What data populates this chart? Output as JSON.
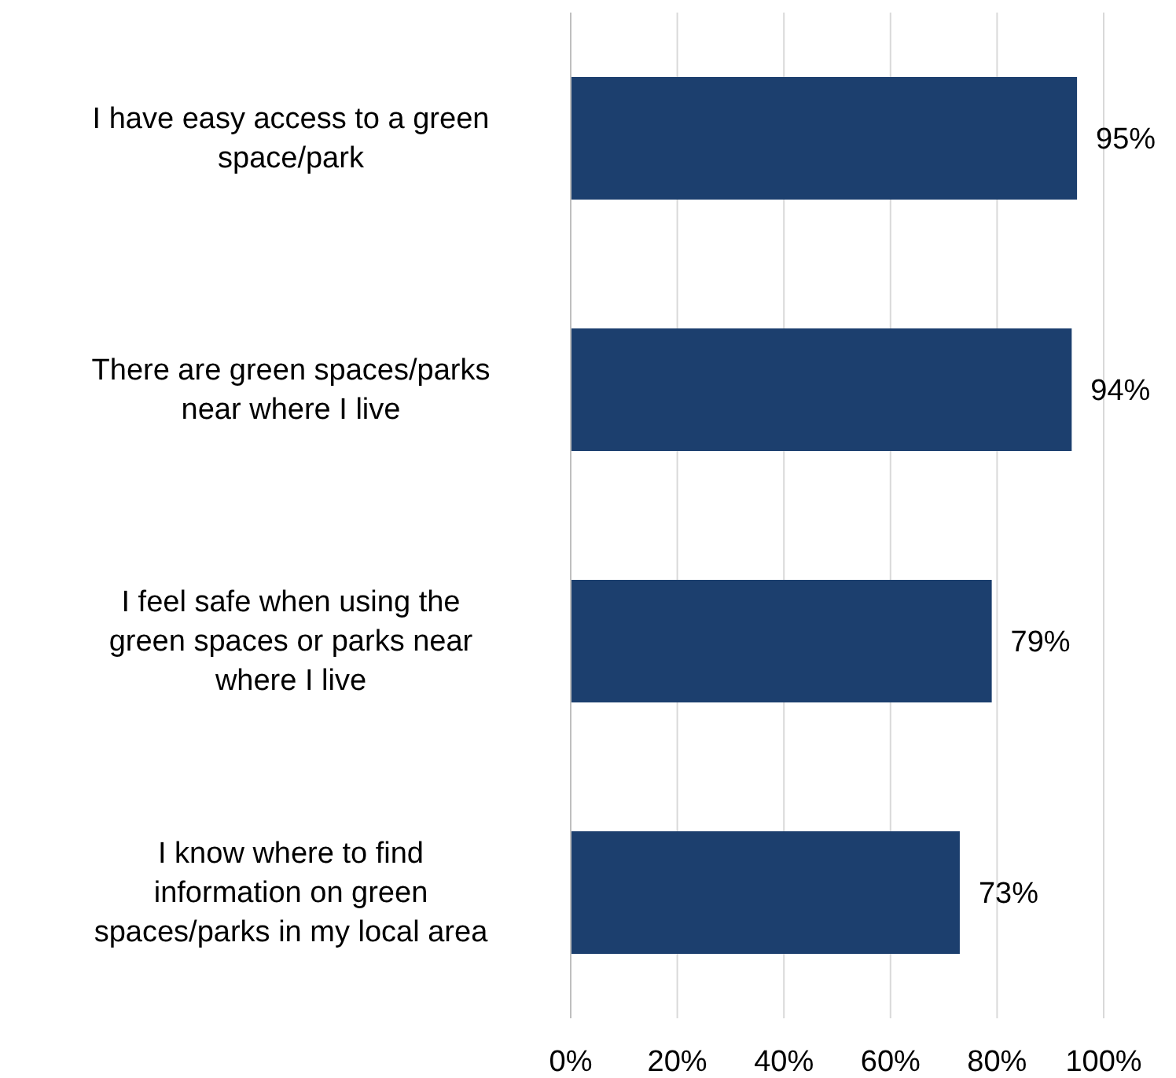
{
  "chart_data": {
    "type": "bar",
    "orientation": "horizontal",
    "categories": [
      "I have easy access to a green space/park",
      "There are green spaces/parks near where I live",
      "I feel safe when using the green spaces or parks near where I live",
      "I know where to find information on green spaces/parks in my local area"
    ],
    "values": [
      95,
      94,
      79,
      73
    ],
    "value_labels": [
      "95%",
      "94%",
      "79%",
      "73%"
    ],
    "color": "#1c3f6e",
    "xlim": [
      0,
      100
    ],
    "xticks": [
      {
        "value": 0,
        "label": "0%"
      },
      {
        "value": 20,
        "label": "20%"
      },
      {
        "value": 40,
        "label": "40%"
      },
      {
        "value": 60,
        "label": "60%"
      },
      {
        "value": 80,
        "label": "80%"
      },
      {
        "value": 100,
        "label": "100%"
      }
    ],
    "grid": "x"
  }
}
